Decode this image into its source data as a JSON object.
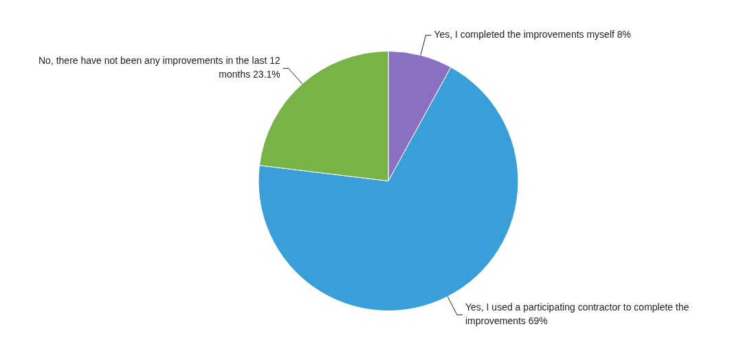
{
  "chart_data": {
    "type": "pie",
    "categories": [
      "Yes, I completed the improvements myself",
      "Yes, I used a participating contractor to complete the improvements",
      "No, there have not been any improvements in the last 12 months"
    ],
    "values": [
      8,
      69,
      23.1
    ],
    "value_labels": [
      "8%",
      "69%",
      "23.1%"
    ],
    "colors": [
      "#8b6fc0",
      "#3a9fd8",
      "#78b347"
    ],
    "legend": false
  }
}
